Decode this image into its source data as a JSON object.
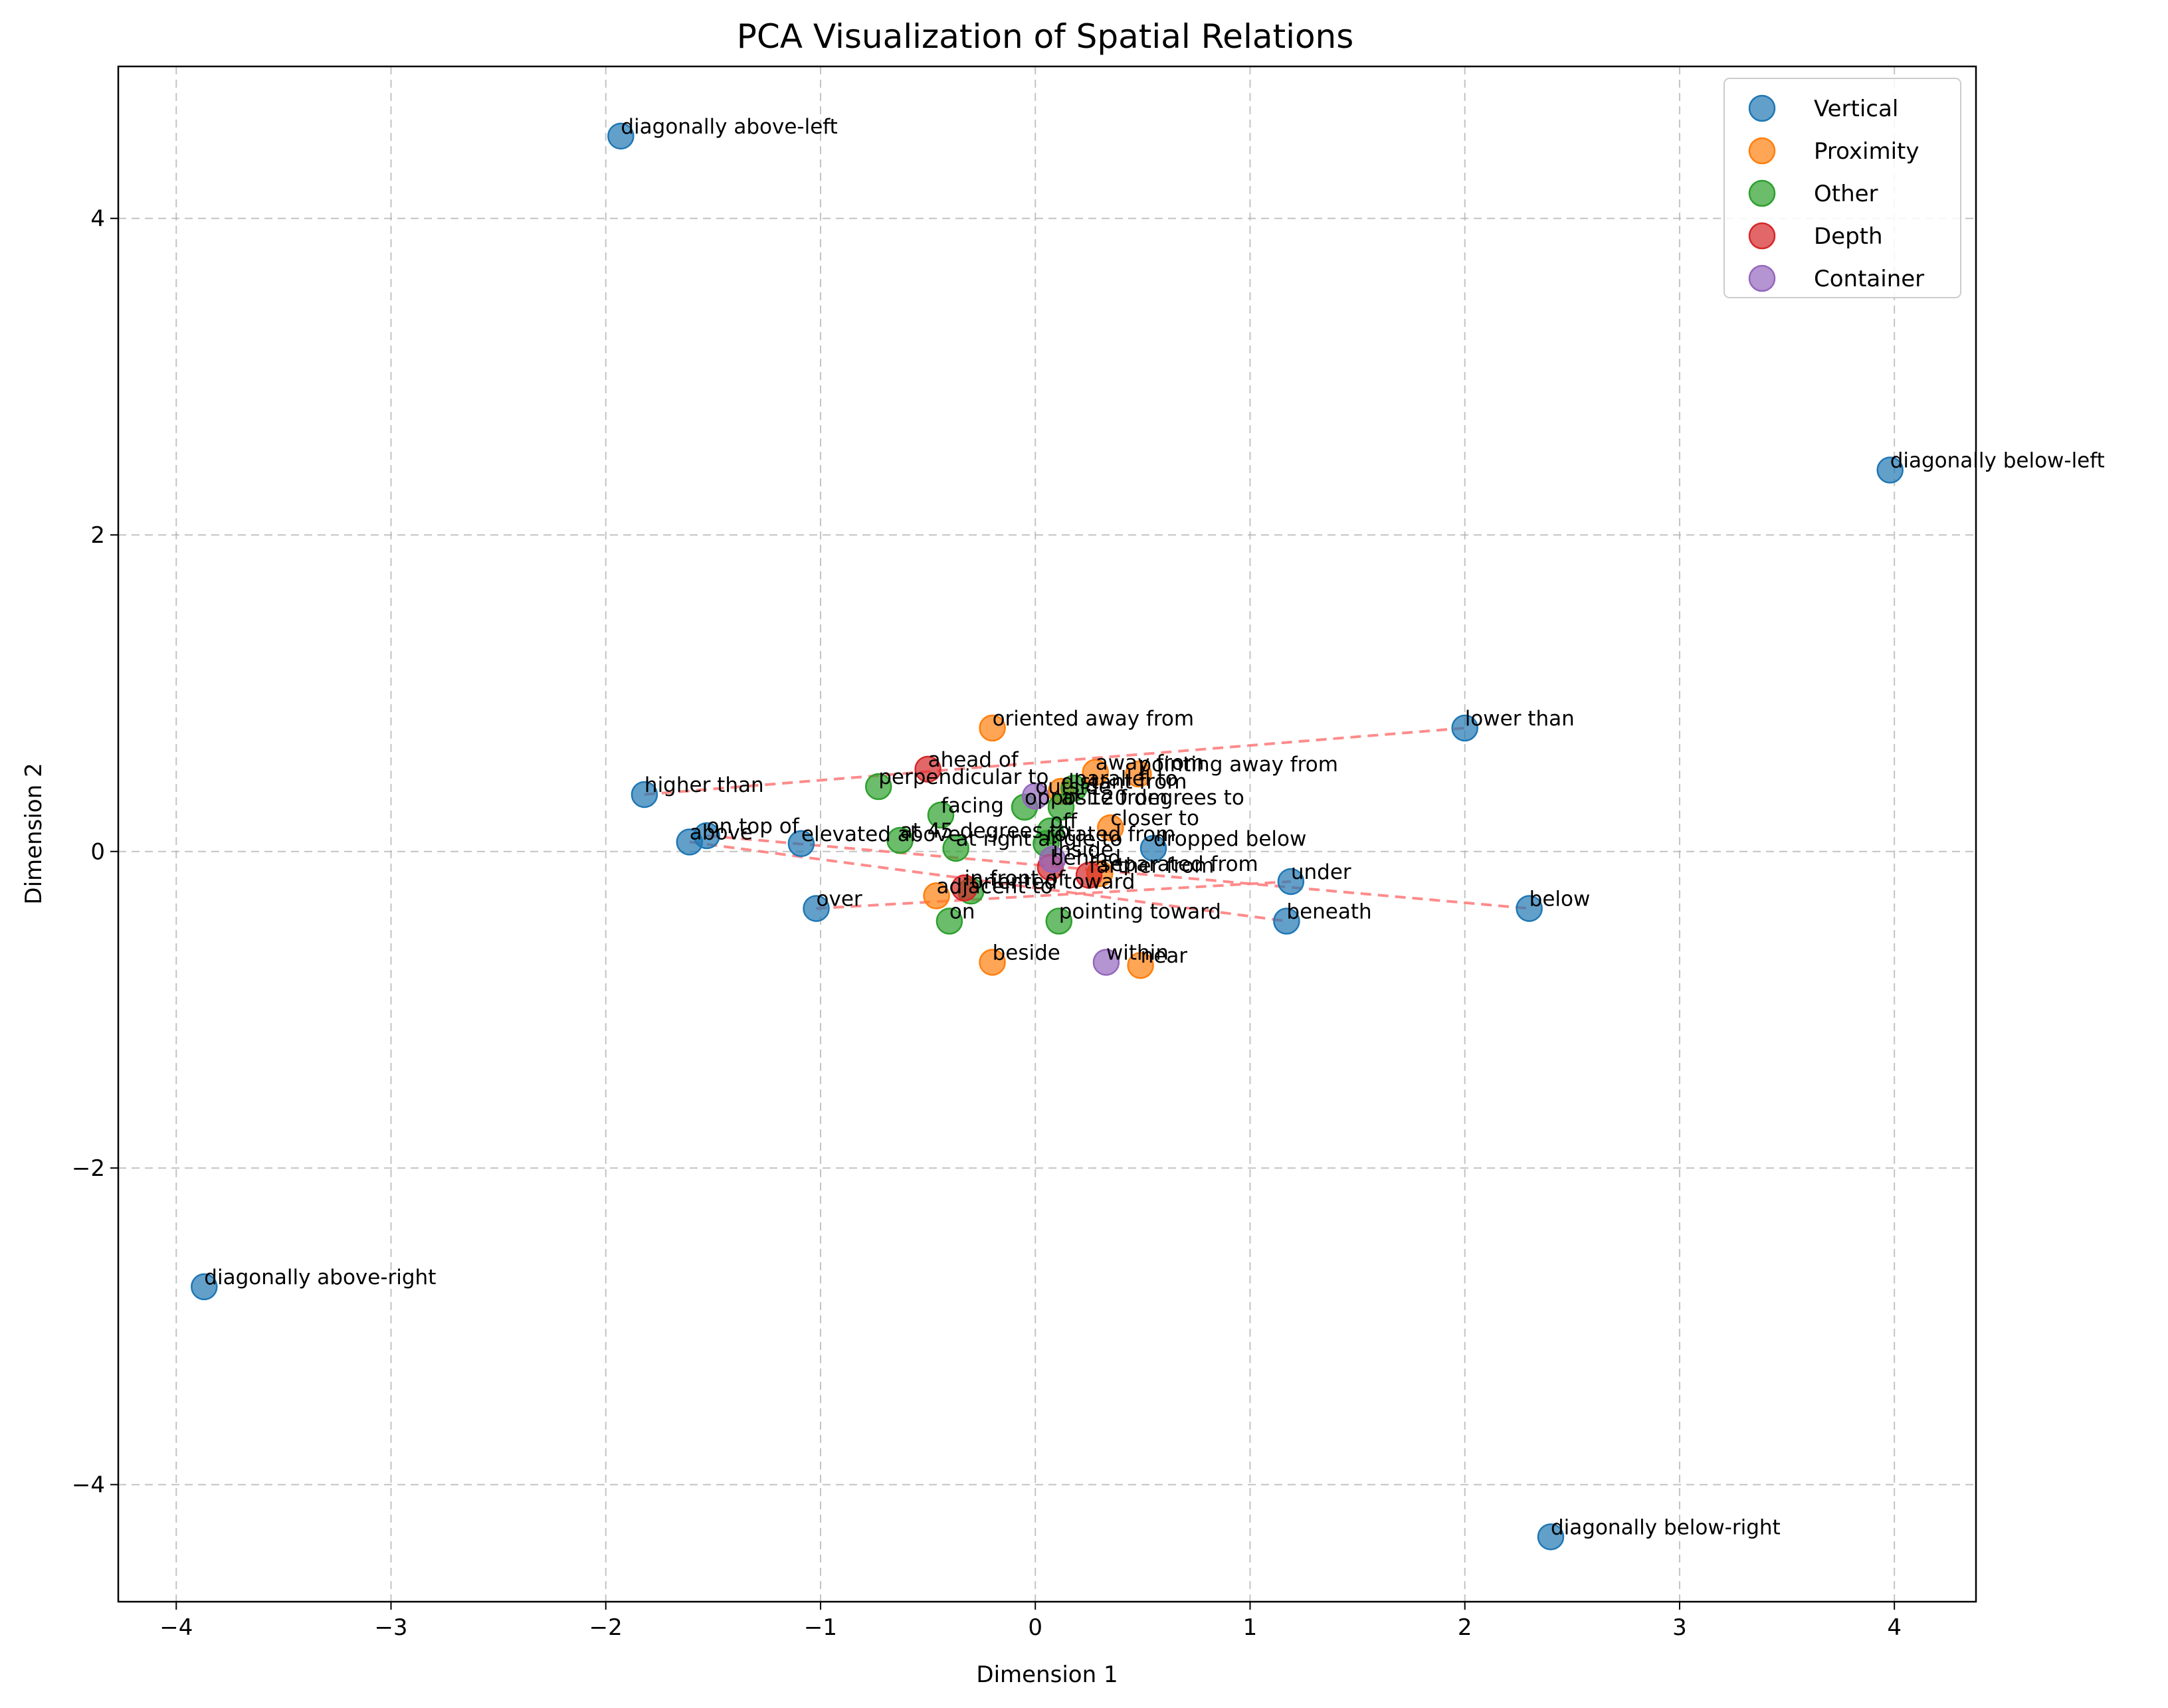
{
  "chart_data": {
    "type": "scatter",
    "title": "PCA Visualization of Spatial Relations",
    "xlabel": "Dimension 1",
    "ylabel": "Dimension 2",
    "xlim": [
      -4.27,
      4.38
    ],
    "ylim": [
      -4.74,
      4.96
    ],
    "xticks": [
      -4,
      -3,
      -2,
      -1,
      0,
      1,
      2,
      3,
      4
    ],
    "yticks": [
      -4,
      -2,
      0,
      2,
      4
    ],
    "grid": true,
    "legend_position": "top-right",
    "series": [
      {
        "name": "Vertical",
        "color": "#1f77b4",
        "points": [
          {
            "label": "diagonally above-left",
            "x": -1.93,
            "y": 4.52
          },
          {
            "label": "diagonally below-left",
            "x": 3.98,
            "y": 2.41
          },
          {
            "label": "diagonally above-right",
            "x": -3.87,
            "y": -2.75
          },
          {
            "label": "diagonally below-right",
            "x": 2.4,
            "y": -4.33
          },
          {
            "label": "lower than",
            "x": 2.0,
            "y": 0.78
          },
          {
            "label": "higher than",
            "x": -1.82,
            "y": 0.36
          },
          {
            "label": "on top of",
            "x": -1.53,
            "y": 0.1
          },
          {
            "label": "above",
            "x": -1.61,
            "y": 0.06
          },
          {
            "label": "elevated above",
            "x": -1.09,
            "y": 0.05
          },
          {
            "label": "over",
            "x": -1.02,
            "y": -0.36
          },
          {
            "label": "under",
            "x": 1.19,
            "y": -0.19
          },
          {
            "label": "beneath",
            "x": 1.17,
            "y": -0.44
          },
          {
            "label": "below",
            "x": 2.3,
            "y": -0.36
          },
          {
            "label": "dropped below",
            "x": 0.55,
            "y": 0.02
          }
        ]
      },
      {
        "name": "Proximity",
        "color": "#ff7f0e",
        "points": [
          {
            "label": "oriented away from",
            "x": -0.2,
            "y": 0.78
          },
          {
            "label": "away from",
            "x": 0.28,
            "y": 0.5
          },
          {
            "label": "pointing away from",
            "x": 0.48,
            "y": 0.49
          },
          {
            "label": "closer to",
            "x": 0.35,
            "y": 0.15
          },
          {
            "label": "adjacent to",
            "x": -0.46,
            "y": -0.28
          },
          {
            "label": "beside",
            "x": -0.2,
            "y": -0.7
          },
          {
            "label": "near",
            "x": 0.49,
            "y": -0.72
          },
          {
            "label": "distant from",
            "x": 0.12,
            "y": 0.38
          },
          {
            "label": "separated from",
            "x": 0.3,
            "y": -0.14
          }
        ]
      },
      {
        "name": "Other",
        "color": "#2ca02c",
        "points": [
          {
            "label": "perpendicular to",
            "x": -0.73,
            "y": 0.41
          },
          {
            "label": "facing",
            "x": -0.44,
            "y": 0.23
          },
          {
            "label": "at 45 degrees to",
            "x": -0.63,
            "y": 0.07
          },
          {
            "label": "at right angle to",
            "x": -0.37,
            "y": 0.02
          },
          {
            "label": "opposite from",
            "x": -0.05,
            "y": 0.28
          },
          {
            "label": "at 120 degrees to",
            "x": 0.12,
            "y": 0.28
          },
          {
            "label": "parallel to",
            "x": 0.18,
            "y": 0.4
          },
          {
            "label": "off",
            "x": 0.07,
            "y": 0.13
          },
          {
            "label": "on",
            "x": -0.4,
            "y": -0.44
          },
          {
            "label": "pointing toward",
            "x": 0.11,
            "y": -0.44
          },
          {
            "label": "oriented toward",
            "x": -0.3,
            "y": -0.25
          },
          {
            "label": "rotated from",
            "x": 0.05,
            "y": 0.05
          }
        ]
      },
      {
        "name": "Depth",
        "color": "#d62728",
        "points": [
          {
            "label": "ahead of",
            "x": -0.5,
            "y": 0.52
          },
          {
            "label": "in front of",
            "x": -0.33,
            "y": -0.23
          },
          {
            "label": "behind",
            "x": 0.07,
            "y": -0.1
          },
          {
            "label": "farther from",
            "x": 0.25,
            "y": -0.15
          }
        ]
      },
      {
        "name": "Container",
        "color": "#9467bd",
        "points": [
          {
            "label": "outside",
            "x": 0.0,
            "y": 0.35
          },
          {
            "label": "within",
            "x": 0.33,
            "y": -0.7
          },
          {
            "label": "inside",
            "x": 0.08,
            "y": -0.05
          }
        ]
      }
    ],
    "lines": [
      {
        "color": "#ff7f7f",
        "from": {
          "x": -1.82,
          "y": 0.36
        },
        "to": {
          "x": 2.0,
          "y": 0.78
        }
      },
      {
        "color": "#ff7f7f",
        "from": {
          "x": -1.61,
          "y": 0.06
        },
        "to": {
          "x": 1.17,
          "y": -0.44
        }
      },
      {
        "color": "#ff7f7f",
        "from": {
          "x": -1.53,
          "y": 0.1
        },
        "to": {
          "x": 2.3,
          "y": -0.36
        }
      },
      {
        "color": "#ff7f7f",
        "from": {
          "x": -1.02,
          "y": -0.36
        },
        "to": {
          "x": 1.19,
          "y": -0.19
        }
      }
    ]
  }
}
